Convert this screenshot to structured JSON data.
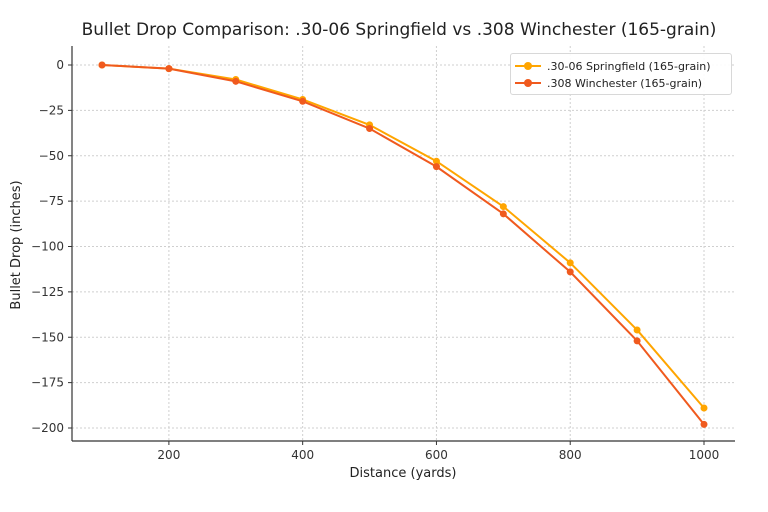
{
  "chart_data": {
    "type": "line",
    "title": "Bullet Drop Comparison: .30-06 Springfield vs .308 Winchester (165-grain)",
    "xlabel": "Distance (yards)",
    "ylabel": "Bullet Drop (inches)",
    "x": [
      100,
      200,
      300,
      400,
      500,
      600,
      700,
      800,
      900,
      1000
    ],
    "series": [
      {
        "name": ".30-06 Springfield (165-grain)",
        "color": "#FFA500",
        "marker": "circle",
        "values": [
          0,
          -2,
          -8,
          -19,
          -33,
          -53,
          -78,
          -109,
          -146,
          -189
        ]
      },
      {
        "name": ".308 Winchester (165-grain)",
        "color": "#F05A1E",
        "marker": "circle",
        "values": [
          0,
          -2,
          -9,
          -20,
          -35,
          -56,
          -82,
          -114,
          -152,
          -198
        ]
      }
    ],
    "xticks": [
      200,
      400,
      600,
      800,
      1000
    ],
    "yticks": [
      0,
      -25,
      -50,
      -75,
      -100,
      -125,
      -150,
      -175,
      -200
    ],
    "xlim": [
      55,
      1045
    ],
    "ylim": [
      -209,
      10
    ],
    "grid": true,
    "legend_position": "upper right"
  },
  "labels": {
    "title": "Bullet Drop Comparison: .30-06 Springfield vs .308 Winchester (165-grain)",
    "xlabel": "Distance (yards)",
    "ylabel": "Bullet Drop (inches)",
    "legend": [
      ".30-06 Springfield (165-grain)",
      ".308 Winchester (165-grain)"
    ]
  }
}
